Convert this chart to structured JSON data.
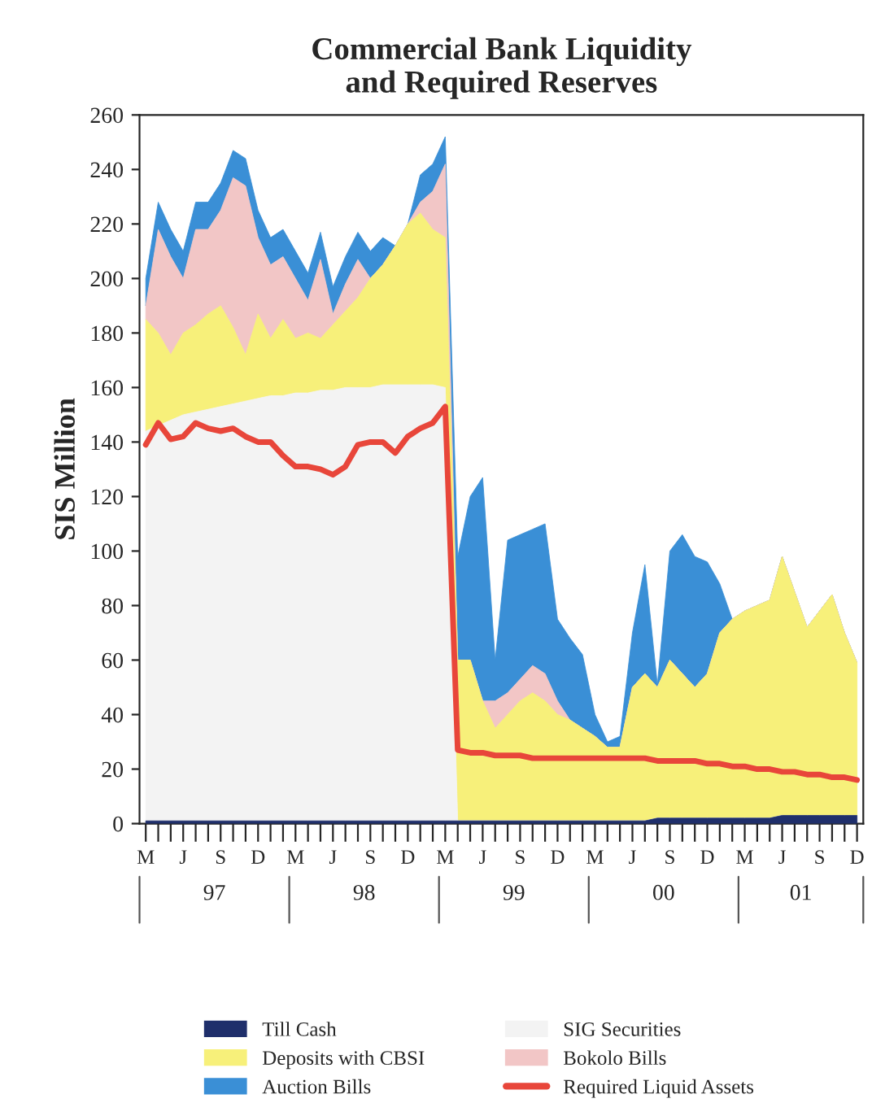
{
  "chart_data": {
    "type": "area",
    "title": "Commercial Bank Liquidity\nand Required Reserves",
    "ylabel": "SIS Million",
    "categories": [
      "M",
      null,
      null,
      "J",
      null,
      null,
      "S",
      null,
      null,
      "D",
      null,
      null,
      "M",
      null,
      null,
      "J",
      null,
      null,
      "S",
      null,
      null,
      "D",
      null,
      null,
      "M",
      null,
      null,
      "J",
      null,
      null,
      "S",
      null,
      null,
      "D",
      null,
      null,
      "M",
      null,
      null,
      "J",
      null,
      null,
      "S",
      null,
      null,
      "D",
      null,
      null,
      "M",
      null,
      null,
      "J",
      null,
      null,
      "S",
      null,
      null,
      "D"
    ],
    "stacked": true,
    "ylim": [
      0,
      260
    ],
    "yticks": [
      0,
      20,
      40,
      60,
      80,
      100,
      120,
      140,
      160,
      180,
      200,
      220,
      240,
      260
    ],
    "grid": false,
    "legend": "bottom",
    "annotations": [
      "97",
      "98",
      "99",
      "00",
      "01"
    ],
    "series": [
      {
        "name": "Till Cash",
        "color": "#1f2f6b",
        "values": [
          1,
          1,
          1,
          1,
          1,
          1,
          1,
          1,
          1,
          1,
          1,
          1,
          1,
          1,
          1,
          1,
          1,
          1,
          1,
          1,
          1,
          1,
          1,
          1,
          1,
          1,
          1,
          1,
          1,
          1,
          1,
          1,
          1,
          1,
          1,
          1,
          1,
          1,
          1,
          1,
          1,
          2,
          2,
          2,
          2,
          2,
          2,
          2,
          2,
          2,
          2,
          3,
          3,
          3,
          3,
          3,
          3,
          3
        ]
      },
      {
        "name": "SIG Securities",
        "color": "#f3f3f3",
        "values": [
          143,
          145,
          147,
          149,
          150,
          151,
          152,
          153,
          154,
          155,
          156,
          156,
          157,
          157,
          158,
          158,
          159,
          159,
          159,
          160,
          160,
          160,
          160,
          160,
          159,
          0,
          0,
          0,
          0,
          0,
          0,
          0,
          0,
          0,
          0,
          0,
          0,
          0,
          0,
          0,
          0,
          0,
          0,
          0,
          0,
          0,
          0,
          0,
          0,
          0,
          0,
          0,
          0,
          0,
          0,
          0,
          0,
          0
        ]
      },
      {
        "name": "Deposits with CBSI",
        "color": "#f7f07a",
        "values": [
          41,
          34,
          24,
          30,
          32,
          35,
          37,
          28,
          17,
          31,
          21,
          28,
          20,
          22,
          19,
          24,
          28,
          33,
          40,
          44,
          51,
          59,
          63,
          57,
          55,
          59,
          59,
          44,
          34,
          39,
          44,
          47,
          44,
          39,
          37,
          34,
          31,
          27,
          27,
          49,
          54,
          48,
          58,
          53,
          48,
          53,
          68,
          73,
          76,
          78,
          80,
          95,
          82,
          69,
          75,
          81,
          67,
          56
        ]
      },
      {
        "name": "Bokolo Bills",
        "color": "#f2c6c6",
        "values": [
          5,
          38,
          36,
          20,
          35,
          31,
          35,
          55,
          62,
          28,
          27,
          23,
          22,
          12,
          29,
          4,
          10,
          14,
          0,
          0,
          0,
          0,
          4,
          14,
          27,
          0,
          0,
          0,
          10,
          8,
          8,
          10,
          10,
          5,
          0,
          0,
          0,
          0,
          0,
          0,
          0,
          0,
          0,
          0,
          0,
          0,
          0,
          0,
          0,
          0,
          0,
          0,
          0,
          0,
          0,
          0,
          0,
          0
        ]
      },
      {
        "name": "Auction Bills",
        "color": "#3a8fd6",
        "values": [
          10,
          10,
          10,
          10,
          10,
          10,
          10,
          10,
          10,
          10,
          10,
          10,
          10,
          10,
          10,
          10,
          10,
          10,
          10,
          10,
          0,
          0,
          10,
          10,
          10,
          38,
          60,
          82,
          15,
          56,
          53,
          50,
          55,
          30,
          30,
          27,
          8,
          2,
          4,
          20,
          40,
          1,
          40,
          51,
          48,
          41,
          18,
          0,
          0,
          0,
          0,
          0,
          0,
          0,
          0,
          0,
          0,
          0
        ]
      },
      {
        "name": "Required Liquid Assets",
        "type": "line",
        "color": "#e8463a",
        "values": [
          139,
          147,
          141,
          142,
          147,
          145,
          144,
          145,
          142,
          140,
          140,
          135,
          131,
          131,
          130,
          128,
          131,
          139,
          140,
          140,
          136,
          142,
          145,
          147,
          153,
          27,
          26,
          26,
          25,
          25,
          25,
          24,
          24,
          24,
          24,
          24,
          24,
          24,
          24,
          24,
          24,
          23,
          23,
          23,
          23,
          22,
          22,
          21,
          21,
          20,
          20,
          19,
          19,
          18,
          18,
          17,
          17,
          16
        ]
      }
    ]
  }
}
